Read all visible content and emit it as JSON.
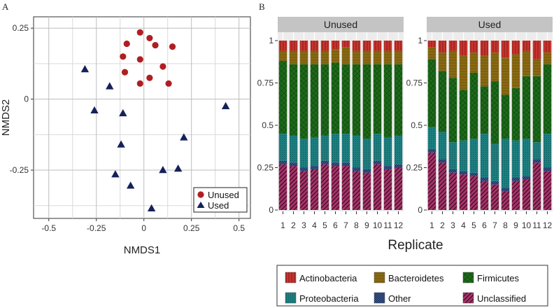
{
  "chart_data": [
    {
      "panel": "A",
      "type": "scatter",
      "xlabel": "NMDS1",
      "ylabel": "NMDS2",
      "xlim": [
        -0.58,
        0.56
      ],
      "ylim": [
        -0.42,
        0.29
      ],
      "xticks": [
        -0.5,
        -0.25,
        0,
        0.25,
        0.5
      ],
      "xtick_labels": [
        "-0.5",
        "-0.25",
        "0",
        "0.25",
        "0.5"
      ],
      "yticks": [
        0.25,
        0,
        -0.25
      ],
      "ytick_labels": [
        "0.25",
        "0",
        "-0.25"
      ],
      "grid": true,
      "legend_position": "bottom-right",
      "series": [
        {
          "name": "Unused",
          "marker": "circle",
          "color": "#b01e22",
          "points": [
            [
              -0.02,
              0.235
            ],
            [
              -0.09,
              0.195
            ],
            [
              0.03,
              0.215
            ],
            [
              0.06,
              0.19
            ],
            [
              0.15,
              0.185
            ],
            [
              -0.11,
              0.15
            ],
            [
              -0.02,
              0.14
            ],
            [
              0.1,
              0.115
            ],
            [
              -0.1,
              0.095
            ],
            [
              0.03,
              0.075
            ],
            [
              -0.02,
              0.055
            ],
            [
              0.13,
              0.055
            ]
          ]
        },
        {
          "name": "Used",
          "marker": "triangle",
          "color": "#15215a",
          "points": [
            [
              -0.31,
              0.105
            ],
            [
              -0.18,
              0.045
            ],
            [
              -0.26,
              -0.04
            ],
            [
              -0.11,
              -0.05
            ],
            [
              0.43,
              -0.025
            ],
            [
              0.21,
              -0.135
            ],
            [
              -0.12,
              -0.16
            ],
            [
              0.18,
              -0.245
            ],
            [
              0.1,
              -0.25
            ],
            [
              -0.15,
              -0.265
            ],
            [
              -0.07,
              -0.305
            ],
            [
              0.04,
              -0.385
            ]
          ]
        }
      ]
    },
    {
      "panel": "B",
      "type": "bar",
      "stacked": true,
      "xlabel": "Replicate",
      "ylabel": "",
      "ylim": [
        0,
        1
      ],
      "yticks": [
        0,
        0.25,
        0.5,
        0.75,
        1
      ],
      "ytick_labels": [
        "0",
        "0.25",
        "0.5",
        "0.75",
        "1"
      ],
      "categories": [
        "1",
        "2",
        "3",
        "4",
        "5",
        "6",
        "7",
        "8",
        "9",
        "10",
        "11",
        "12"
      ],
      "legend_position": "bottom",
      "series_order": [
        "Unclassified",
        "Other",
        "Proteobacteria",
        "Firmicutes",
        "Bacteroidetes",
        "Actinobacteria"
      ],
      "series_colors": {
        "Actinobacteria": "#c8352e",
        "Bacteroidetes": "#8a6a12",
        "Firmicutes": "#1d6a1a",
        "Proteobacteria": "#1d7f80",
        "Other": "#0f2a5a",
        "Unclassified": "#a8336a"
      },
      "legend_order": [
        "Actinobacteria",
        "Bacteroidetes",
        "Firmicutes",
        "Proteobacteria",
        "Other",
        "Unclassified"
      ],
      "facets": [
        {
          "title": "Unused",
          "series": [
            {
              "name": "Unclassified",
              "values": [
                0.27,
                0.26,
                0.23,
                0.24,
                0.27,
                0.26,
                0.26,
                0.23,
                0.22,
                0.27,
                0.24,
                0.25
              ]
            },
            {
              "name": "Other",
              "values": [
                0.02,
                0.02,
                0.02,
                0.02,
                0.02,
                0.02,
                0.02,
                0.02,
                0.02,
                0.02,
                0.02,
                0.02
              ]
            },
            {
              "name": "Proteobacteria",
              "values": [
                0.16,
                0.16,
                0.17,
                0.17,
                0.15,
                0.17,
                0.17,
                0.19,
                0.18,
                0.16,
                0.17,
                0.17
              ]
            },
            {
              "name": "Firmicutes",
              "values": [
                0.43,
                0.42,
                0.44,
                0.43,
                0.42,
                0.42,
                0.41,
                0.42,
                0.44,
                0.41,
                0.43,
                0.42
              ]
            },
            {
              "name": "Bacteroidetes",
              "values": [
                0.06,
                0.08,
                0.08,
                0.08,
                0.08,
                0.08,
                0.1,
                0.08,
                0.08,
                0.08,
                0.08,
                0.08
              ]
            },
            {
              "name": "Actinobacteria",
              "values": [
                0.06,
                0.06,
                0.06,
                0.06,
                0.06,
                0.05,
                0.04,
                0.06,
                0.06,
                0.06,
                0.06,
                0.06
              ]
            }
          ]
        },
        {
          "title": "Used",
          "series": [
            {
              "name": "Unclassified",
              "values": [
                0.34,
                0.28,
                0.22,
                0.21,
                0.2,
                0.17,
                0.15,
                0.11,
                0.17,
                0.18,
                0.28,
                0.23
              ]
            },
            {
              "name": "Other",
              "values": [
                0.02,
                0.02,
                0.02,
                0.02,
                0.02,
                0.02,
                0.02,
                0.02,
                0.02,
                0.02,
                0.02,
                0.02
              ]
            },
            {
              "name": "Proteobacteria",
              "values": [
                0.13,
                0.16,
                0.16,
                0.18,
                0.2,
                0.26,
                0.22,
                0.29,
                0.22,
                0.22,
                0.1,
                0.2
              ]
            },
            {
              "name": "Firmicutes",
              "values": [
                0.4,
                0.36,
                0.38,
                0.3,
                0.39,
                0.28,
                0.37,
                0.26,
                0.31,
                0.37,
                0.39,
                0.41
              ]
            },
            {
              "name": "Bacteroidetes",
              "values": [
                0.07,
                0.11,
                0.16,
                0.2,
                0.12,
                0.18,
                0.17,
                0.22,
                0.2,
                0.15,
                0.1,
                0.07
              ]
            },
            {
              "name": "Actinobacteria",
              "values": [
                0.04,
                0.07,
                0.06,
                0.09,
                0.07,
                0.09,
                0.07,
                0.1,
                0.08,
                0.06,
                0.11,
                0.07
              ]
            }
          ]
        }
      ]
    }
  ]
}
